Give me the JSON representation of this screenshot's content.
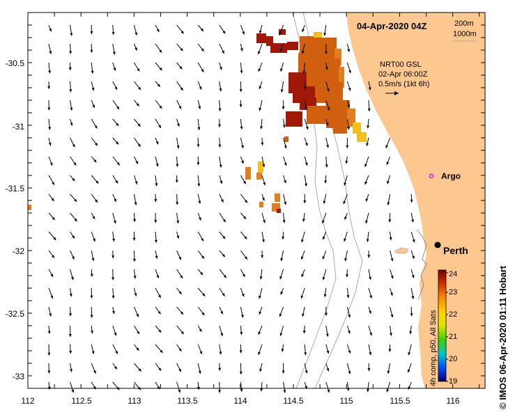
{
  "title": "04-Apr-2020 04Z",
  "isobath_legend": [
    "200m",
    "1000m"
  ],
  "current_legend": {
    "source": "NRT00 GSL",
    "time": "02-Apr 06:00Z",
    "scale": "0.5m/s (1kt 6h)"
  },
  "places": {
    "argo": "Argo",
    "perth": "Perth"
  },
  "colorbar": {
    "label": "4h comp, p50, All Sats",
    "ticks": [
      "19",
      "20",
      "21",
      "22",
      "23",
      "24"
    ],
    "stops": [
      "#08006e",
      "#0050ff",
      "#00c8c8",
      "#3cd000",
      "#d8e800",
      "#ffd000",
      "#ff8c00",
      "#d03000",
      "#780000"
    ]
  },
  "credit": "© IMOS 06-Apr-2020 01:11 Hobart",
  "axes": {
    "x_ticks": [
      "112",
      "112.5",
      "113",
      "113.5",
      "114",
      "114.5",
      "115",
      "115.5",
      "116"
    ],
    "y_ticks": [
      "-30.5",
      "-31",
      "-31.5",
      "-32",
      "-32.5",
      "-33"
    ]
  },
  "colors": {
    "land": "#fcc890",
    "sst_dark": "#a01808",
    "sst_mid": "#d06010",
    "sst_warm": "#e07f20",
    "sst_yellow": "#f0c020",
    "argo": "#e040e0",
    "isobath": "#a8a8a8"
  }
}
